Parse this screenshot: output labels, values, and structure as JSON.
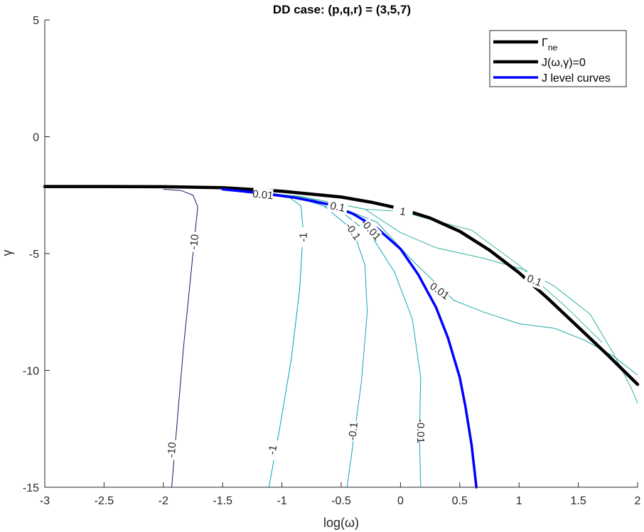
{
  "chart_data": {
    "type": "line",
    "title": "DD case: (p,q,r) = (3,5,7)",
    "xlabel": "log(ω)",
    "ylabel": "γ",
    "xlim": [
      -3,
      2
    ],
    "ylim": [
      -15,
      5
    ],
    "xticks": [
      -3,
      -2.5,
      -2,
      -1.5,
      -1,
      -0.5,
      0,
      0.5,
      1,
      1.5,
      2
    ],
    "xtick_labels": [
      "-3",
      "-2.5",
      "-2",
      "-1.5",
      "-1",
      "-0.5",
      "0",
      "0.5",
      "1",
      "1.5",
      "2"
    ],
    "yticks": [
      5,
      0,
      -5,
      -10,
      -15
    ],
    "ytick_labels": [
      "5",
      "0",
      "-5",
      "-10",
      "-15"
    ],
    "grid": false,
    "legend_position": "top-right",
    "legend": [
      {
        "label": "Γ",
        "sub": "ne",
        "color": "#000000"
      },
      {
        "label": "J(ω,γ)=0",
        "color": "#000000"
      },
      {
        "label": "J level curves",
        "color": "#0000ff"
      }
    ],
    "series": [
      {
        "name": "Γ_ne",
        "color": "#000000",
        "width": 4.5,
        "points": [
          [
            -3,
            -2.13
          ],
          [
            -2.5,
            -2.13
          ],
          [
            -2,
            -2.14
          ],
          [
            -1.5,
            -2.18
          ],
          [
            -1,
            -2.33
          ],
          [
            -0.5,
            -2.58
          ],
          [
            -0.25,
            -2.8
          ],
          [
            0,
            -3.08
          ],
          [
            0.25,
            -3.48
          ],
          [
            0.5,
            -4.05
          ],
          [
            0.75,
            -4.85
          ],
          [
            1,
            -5.82
          ],
          [
            1.25,
            -6.95
          ],
          [
            1.5,
            -8.15
          ],
          [
            1.75,
            -9.35
          ],
          [
            2,
            -10.6
          ]
        ]
      },
      {
        "name": "J(ω,γ)=0",
        "color": "#0000ff",
        "width": 3.5,
        "points": [
          [
            -1.5,
            -2.25
          ],
          [
            -1.2,
            -2.4
          ],
          [
            -0.9,
            -2.6
          ],
          [
            -0.6,
            -2.9
          ],
          [
            -0.4,
            -3.3
          ],
          [
            -0.2,
            -3.9
          ],
          [
            0,
            -4.8
          ],
          [
            0.15,
            -5.9
          ],
          [
            0.3,
            -7.3
          ],
          [
            0.4,
            -8.6
          ],
          [
            0.5,
            -10.3
          ],
          [
            0.55,
            -11.6
          ],
          [
            0.6,
            -13.2
          ],
          [
            0.64,
            -15
          ]
        ]
      }
    ],
    "level_curves": [
      {
        "level": "-10",
        "color": "#1b1464",
        "points": [
          [
            -2,
            -2.25
          ],
          [
            -1.85,
            -2.3
          ],
          [
            -1.75,
            -2.5
          ],
          [
            -1.71,
            -3.0
          ],
          [
            -1.73,
            -4.0
          ],
          [
            -1.77,
            -6.0
          ],
          [
            -1.83,
            -9.0
          ],
          [
            -1.88,
            -12.0
          ],
          [
            -1.93,
            -15.0
          ]
        ],
        "labels": [
          [
            -1.74,
            -4.5
          ],
          [
            -1.93,
            -13.4
          ]
        ]
      },
      {
        "level": "-1",
        "color": "#00a0c0",
        "points": [
          [
            -1.5,
            -2.25
          ],
          [
            -1.2,
            -2.35
          ],
          [
            -0.95,
            -2.55
          ],
          [
            -0.84,
            -2.95
          ],
          [
            -0.82,
            -4.0
          ],
          [
            -0.85,
            -6.5
          ],
          [
            -0.92,
            -9.5
          ],
          [
            -1.02,
            -12.5
          ],
          [
            -1.11,
            -15.0
          ]
        ],
        "labels": [
          [
            -0.82,
            -4.3
          ],
          [
            -1.08,
            -13.4
          ]
        ]
      },
      {
        "level": "-0.1",
        "color": "#1aa0c0",
        "points": [
          [
            -1.4,
            -2.3
          ],
          [
            -0.9,
            -2.55
          ],
          [
            -0.65,
            -2.95
          ],
          [
            -0.4,
            -4.0
          ],
          [
            -0.3,
            -5.5
          ],
          [
            -0.28,
            -7.5
          ],
          [
            -0.33,
            -10.5
          ],
          [
            -0.45,
            -15.0
          ]
        ],
        "labels": [
          [
            -0.4,
            -4.05
          ],
          [
            -0.4,
            -12.6
          ]
        ]
      },
      {
        "level": "-0.01",
        "color": "#10a8b0",
        "points": [
          [
            -1.3,
            -2.35
          ],
          [
            -0.9,
            -2.55
          ],
          [
            -0.5,
            -3.2
          ],
          [
            -0.25,
            -4.2
          ],
          [
            -0.05,
            -5.8
          ],
          [
            0.1,
            -7.8
          ],
          [
            0.17,
            -10.3
          ],
          [
            0.16,
            -12.8
          ],
          [
            0.17,
            -15.0
          ]
        ],
        "labels": [
          [
            -0.25,
            -3.98
          ],
          [
            0.17,
            -12.6
          ]
        ]
      },
      {
        "level": "0.01",
        "color": "#20a8a0",
        "points": [
          [
            -1.5,
            -2.25
          ],
          [
            -1.1,
            -2.42
          ],
          [
            -0.8,
            -2.6
          ],
          [
            -0.5,
            -3.05
          ],
          [
            -0.2,
            -3.65
          ],
          [
            0.1,
            -5.3
          ],
          [
            0.45,
            -7.0
          ],
          [
            0.7,
            -7.5
          ],
          [
            1.0,
            -8.0
          ],
          [
            1.3,
            -8.2
          ],
          [
            1.55,
            -8.7
          ],
          [
            1.8,
            -9.4
          ],
          [
            2.0,
            -10.2
          ]
        ],
        "labels": [
          [
            -1.16,
            -2.48
          ],
          [
            0.33,
            -6.6
          ]
        ]
      },
      {
        "level": "0.1",
        "color": "#30b0a0",
        "points": [
          [
            -1.45,
            -2.28
          ],
          [
            -0.85,
            -2.55
          ],
          [
            -0.55,
            -2.85
          ],
          [
            -0.3,
            -3.1
          ],
          [
            0.0,
            -4.1
          ],
          [
            0.3,
            -4.75
          ],
          [
            0.7,
            -5.2
          ],
          [
            1.05,
            -5.7
          ],
          [
            1.3,
            -6.4
          ],
          [
            1.6,
            -7.6
          ],
          [
            1.8,
            -9.3
          ],
          [
            1.95,
            -10.8
          ],
          [
            2.0,
            -11.4
          ]
        ],
        "labels": [
          [
            -0.53,
            -3.0
          ],
          [
            1.13,
            -6.15
          ]
        ]
      },
      {
        "level": "1",
        "color": "#40b8a0",
        "points": [
          [
            -1.3,
            -2.4
          ],
          [
            -1.0,
            -2.5
          ],
          [
            -0.7,
            -2.7
          ],
          [
            -0.3,
            -3.1
          ],
          [
            0.0,
            -3.2
          ],
          [
            0.3,
            -3.6
          ],
          [
            0.6,
            -4.0
          ],
          [
            1.0,
            -5.5
          ],
          [
            1.4,
            -7.3
          ],
          [
            1.7,
            -8.8
          ]
        ],
        "labels": [
          [
            0.02,
            -3.2
          ]
        ]
      }
    ]
  }
}
